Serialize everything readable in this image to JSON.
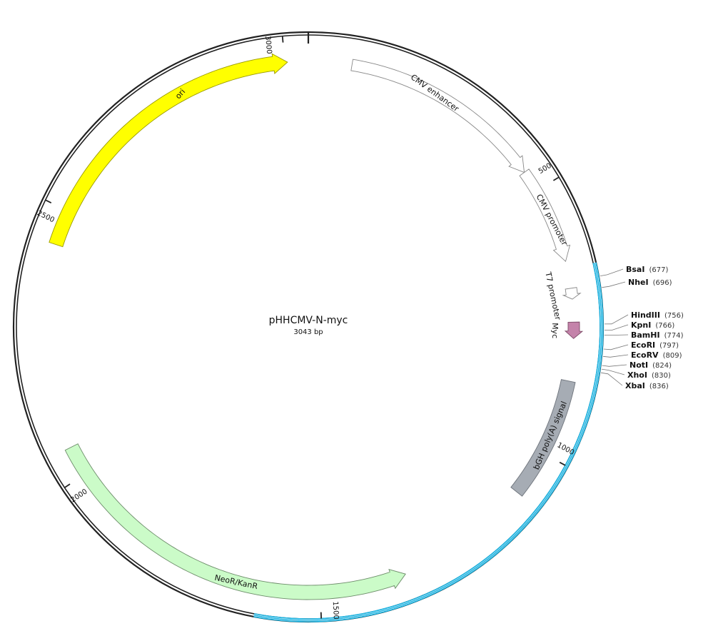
{
  "plasmid": {
    "name": "pHHCMV-N-myc",
    "length_label": "3043 bp",
    "length": 3043
  },
  "backbone_color": "#222222",
  "insert_color": "#19b6e6",
  "insert_range": [
    654,
    1612
  ],
  "ticks": [
    {
      "pos": 500,
      "label": "500"
    },
    {
      "pos": 1000,
      "label": "1000"
    },
    {
      "pos": 1500,
      "label": "1500"
    },
    {
      "pos": 2000,
      "label": "2000"
    },
    {
      "pos": 2500,
      "label": "2500"
    },
    {
      "pos": 3000,
      "label": "3000"
    }
  ],
  "features": [
    {
      "name": "CMV enhancer",
      "start": 80,
      "end": 460,
      "strand": 1,
      "fill": "#ffffff",
      "stroke": "#888888",
      "id": "cmv-enhancer"
    },
    {
      "name": "CMV promoter",
      "start": 460,
      "end": 640,
      "strand": 1,
      "fill": "#ffffff",
      "stroke": "#888888",
      "id": "cmv-promoter"
    },
    {
      "name": "T7 promoter",
      "start": 690,
      "end": 710,
      "strand": 1,
      "fill": "#ffffff",
      "stroke": "#888888",
      "id": "t7-promoter"
    },
    {
      "name": "Myc",
      "start": 752,
      "end": 782,
      "strand": 1,
      "fill": "#c483aa",
      "stroke": "#7d4a67",
      "id": "myc"
    },
    {
      "name": "bGH poly(A) signal",
      "start": 860,
      "end": 1085,
      "strand": 0,
      "fill": "#a6acb4",
      "stroke": "#6d737b",
      "id": "bgh-polya"
    },
    {
      "name": "NeoR/KanR",
      "start": 1340,
      "end": 2055,
      "strand": -1,
      "fill": "#cbfbc8",
      "stroke": "#6d8d6a",
      "id": "neor-kanr"
    },
    {
      "name": "ori",
      "start": 2435,
      "end": 3005,
      "strand": 1,
      "fill": "#ffff00",
      "stroke": "#9a9a00",
      "id": "ori"
    }
  ],
  "sites": [
    {
      "name": "BsaI",
      "pos_label": "(677)",
      "pos": 677
    },
    {
      "name": "NheI",
      "pos_label": "(696)",
      "pos": 696
    },
    {
      "name": "HindIII",
      "pos_label": "(756)",
      "pos": 756
    },
    {
      "name": "KpnI",
      "pos_label": "(766)",
      "pos": 766
    },
    {
      "name": "BamHI",
      "pos_label": "(774)",
      "pos": 774
    },
    {
      "name": "EcoRI",
      "pos_label": "(797)",
      "pos": 797
    },
    {
      "name": "EcoRV",
      "pos_label": "(809)",
      "pos": 809
    },
    {
      "name": "NotI",
      "pos_label": "(824)",
      "pos": 824
    },
    {
      "name": "XhoI",
      "pos_label": "(830)",
      "pos": 830
    },
    {
      "name": "XbaI",
      "pos_label": "(836)",
      "pos": 836
    }
  ]
}
